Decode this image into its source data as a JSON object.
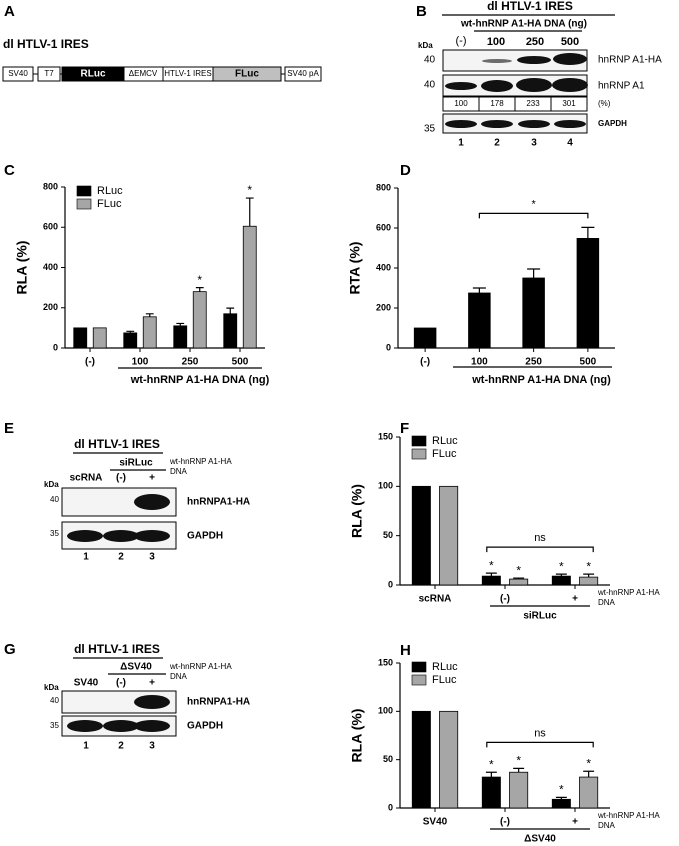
{
  "panels": {
    "A": {
      "letter": "A",
      "title": "dl HTLV-1 IRES",
      "construct": [
        "SV40",
        "T7",
        "RLuc",
        "ΔEMCV",
        "HTLV-1 IRES",
        "FLuc",
        "SV40 pA"
      ]
    },
    "B": {
      "letter": "B",
      "title": "dl HTLV-1 IRES",
      "subtitle": "wt-hnRNP A1-HA DNA (ng)",
      "lanes": [
        "(-)",
        "100",
        "250",
        "500"
      ],
      "kda": "kDa",
      "markers": [
        40,
        40,
        35
      ],
      "bands": [
        "hnRNP A1-HA",
        "hnRNP A1",
        "GAPDH"
      ],
      "quantification": [
        100,
        178,
        233,
        301
      ],
      "quantification_unit": "(%)",
      "lane_numbers": [
        1,
        2,
        3,
        4
      ]
    },
    "E": {
      "letter": "E",
      "title": "dl HTLV-1 IRES",
      "group": "siRLuc",
      "lanes": [
        "scRNA",
        "(-)",
        "+"
      ],
      "note": [
        "wt-hnRNP A1-HA",
        "DNA"
      ],
      "kda": "kDa",
      "markers": [
        40,
        35
      ],
      "bands": [
        "hnRNPA1-HA",
        "GAPDH"
      ],
      "lane_numbers": [
        1,
        2,
        3
      ]
    },
    "G": {
      "letter": "G",
      "title": "dl HTLV-1 IRES",
      "group": "ΔSV40",
      "lanes": [
        "SV40",
        "(-)",
        "+"
      ],
      "note": [
        "wt-hnRNP A1-HA",
        "DNA"
      ],
      "kda": "kDa",
      "markers": [
        40,
        35
      ],
      "bands": [
        "hnRNPA1-HA",
        "GAPDH"
      ],
      "lane_numbers": [
        1,
        2,
        3
      ]
    }
  },
  "chart_data": [
    {
      "type": "bar",
      "panel_label": "C",
      "y_label": "RLA (%)",
      "x_label": "wt-hnRNP A1-HA DNA (ng)",
      "categories": [
        "(-)",
        "100",
        "250",
        "500"
      ],
      "ylim": [
        0,
        800
      ],
      "yticks": [
        0,
        200,
        400,
        600,
        800
      ],
      "legend": "upper left",
      "series": [
        {
          "name": "RLuc",
          "color": "#000000",
          "values": [
            100,
            75,
            110,
            170
          ],
          "errors": [
            null,
            8,
            12,
            28
          ],
          "significance": [
            null,
            null,
            null,
            null
          ]
        },
        {
          "name": "FLuc",
          "color": "#a6a6a6",
          "values": [
            100,
            155,
            280,
            605
          ],
          "errors": [
            null,
            15,
            20,
            140
          ],
          "significance": [
            null,
            null,
            "*",
            "*"
          ]
        }
      ]
    },
    {
      "type": "bar",
      "panel_label": "D",
      "y_label": "RTA (%)",
      "x_label": "wt-hnRNP A1-HA DNA (ng)",
      "categories": [
        "(-)",
        "100",
        "250",
        "500"
      ],
      "ylim": [
        0,
        800
      ],
      "yticks": [
        0,
        200,
        400,
        600,
        800
      ],
      "series": [
        {
          "color": "#000000",
          "values": [
            100,
            275,
            350,
            548
          ],
          "errors": [
            null,
            25,
            45,
            55
          ],
          "significance": [
            null,
            null,
            null,
            null
          ]
        }
      ],
      "bracket": {
        "text": "*",
        "from": "100",
        "to": "500"
      }
    },
    {
      "type": "bar",
      "panel_label": "F",
      "y_label": "RLA (%)",
      "categories": [
        "scRNA",
        "(-)",
        "+"
      ],
      "ylim": [
        0,
        150
      ],
      "yticks": [
        0,
        50,
        100,
        150
      ],
      "legend": "upper left",
      "series": [
        {
          "name": "RLuc",
          "color": "#000000",
          "values": [
            100,
            9,
            9
          ],
          "errors": [
            null,
            3,
            2
          ],
          "significance": [
            null,
            "*",
            "*"
          ]
        },
        {
          "name": "FLuc",
          "color": "#a6a6a6",
          "values": [
            100,
            6,
            8
          ],
          "errors": [
            null,
            1,
            3
          ],
          "significance": [
            null,
            "*",
            "*"
          ]
        }
      ],
      "groups": [
        {
          "label": "siRLuc",
          "from": "(-)",
          "to": "+"
        }
      ],
      "x_note": [
        "wt-hnRNP A1-HA",
        "DNA"
      ],
      "bracket": {
        "text": "ns",
        "from": "(-)",
        "to": "+"
      }
    },
    {
      "type": "bar",
      "panel_label": "H",
      "y_label": "RLA (%)",
      "categories": [
        "SV40",
        "(-)",
        "+"
      ],
      "ylim": [
        0,
        150
      ],
      "yticks": [
        0,
        50,
        100,
        150
      ],
      "legend": "upper left",
      "series": [
        {
          "name": "RLuc",
          "color": "#000000",
          "values": [
            100,
            32,
            9
          ],
          "errors": [
            null,
            5,
            2
          ],
          "significance": [
            null,
            "*",
            "*"
          ]
        },
        {
          "name": "FLuc",
          "color": "#a6a6a6",
          "values": [
            100,
            37,
            32
          ],
          "errors": [
            null,
            4,
            6
          ],
          "significance": [
            null,
            "*",
            "*"
          ]
        }
      ],
      "groups": [
        {
          "label": "ΔSV40",
          "from": "(-)",
          "to": "+"
        }
      ],
      "x_note": [
        "wt-hnRNP A1-HA",
        "DNA"
      ],
      "bracket": {
        "text": "ns",
        "from": "(-)",
        "to": "+"
      }
    }
  ]
}
